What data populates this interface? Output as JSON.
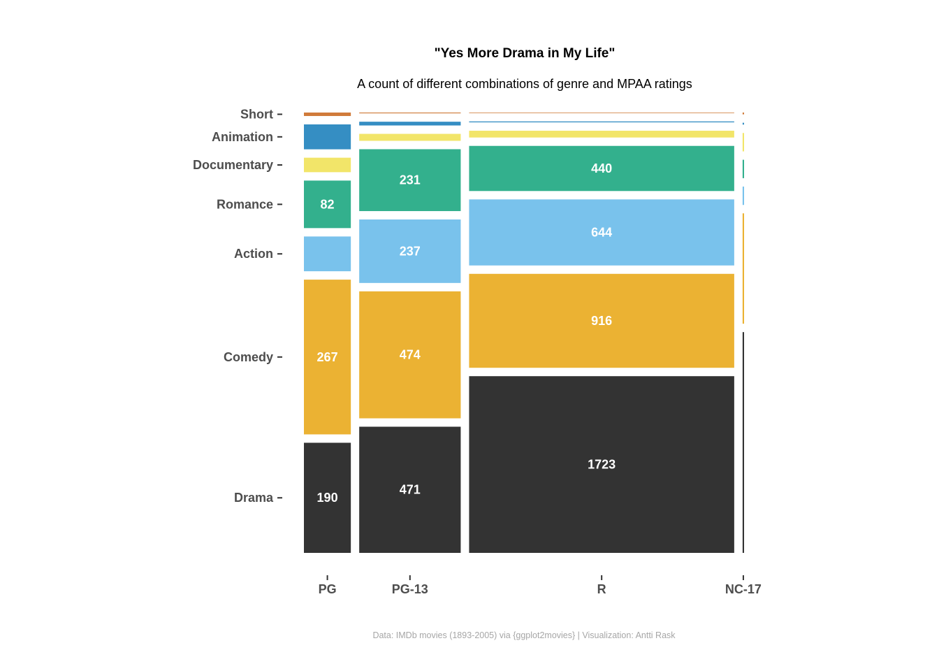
{
  "chart_data": {
    "type": "mosaic",
    "title": "\"Yes More Drama in My Life\"",
    "subtitle": "A count of different combinations of genre and MPAA ratings",
    "caption": "Data: IMDb movies (1893-2005) via {ggplot2movies} | Visualization: Antti Rask",
    "categories": [
      "PG",
      "PG-13",
      "R",
      "NC-17"
    ],
    "genres": [
      "Drama",
      "Comedy",
      "Action",
      "Romance",
      "Documentary",
      "Animation",
      "Short"
    ],
    "colors": {
      "Drama": "#333333",
      "Comedy": "#EBB233",
      "Action": "#79C2EC",
      "Romance": "#33B08D",
      "Documentary": "#F2E569",
      "Animation": "#358EC3",
      "Short": "#D07B3A"
    },
    "values": {
      "PG": {
        "Drama": 190,
        "Comedy": 267,
        "Action": 60,
        "Romance": 82,
        "Documentary": 25,
        "Animation": 43,
        "Short": 6
      },
      "PG-13": {
        "Drama": 471,
        "Comedy": 474,
        "Action": 237,
        "Romance": 231,
        "Documentary": 26,
        "Animation": 14,
        "Short": 3
      },
      "R": {
        "Drama": 1723,
        "Comedy": 916,
        "Action": 644,
        "Romance": 440,
        "Documentary": 66,
        "Animation": 9,
        "Short": 5
      },
      "NC-17": {
        "Drama": 12,
        "Comedy": 6,
        "Action": 1,
        "Romance": 1,
        "Documentary": 1,
        "Animation": 0.1,
        "Short": 0.1
      }
    },
    "labels": {
      "PG": {
        "Drama": "190",
        "Comedy": "267",
        "Romance": "82"
      },
      "PG-13": {
        "Drama": "471",
        "Comedy": "474",
        "Action": "237",
        "Romance": "231"
      },
      "R": {
        "Drama": "1723",
        "Comedy": "916",
        "Action": "644",
        "Romance": "440"
      }
    },
    "grid": false,
    "legend": "none"
  }
}
